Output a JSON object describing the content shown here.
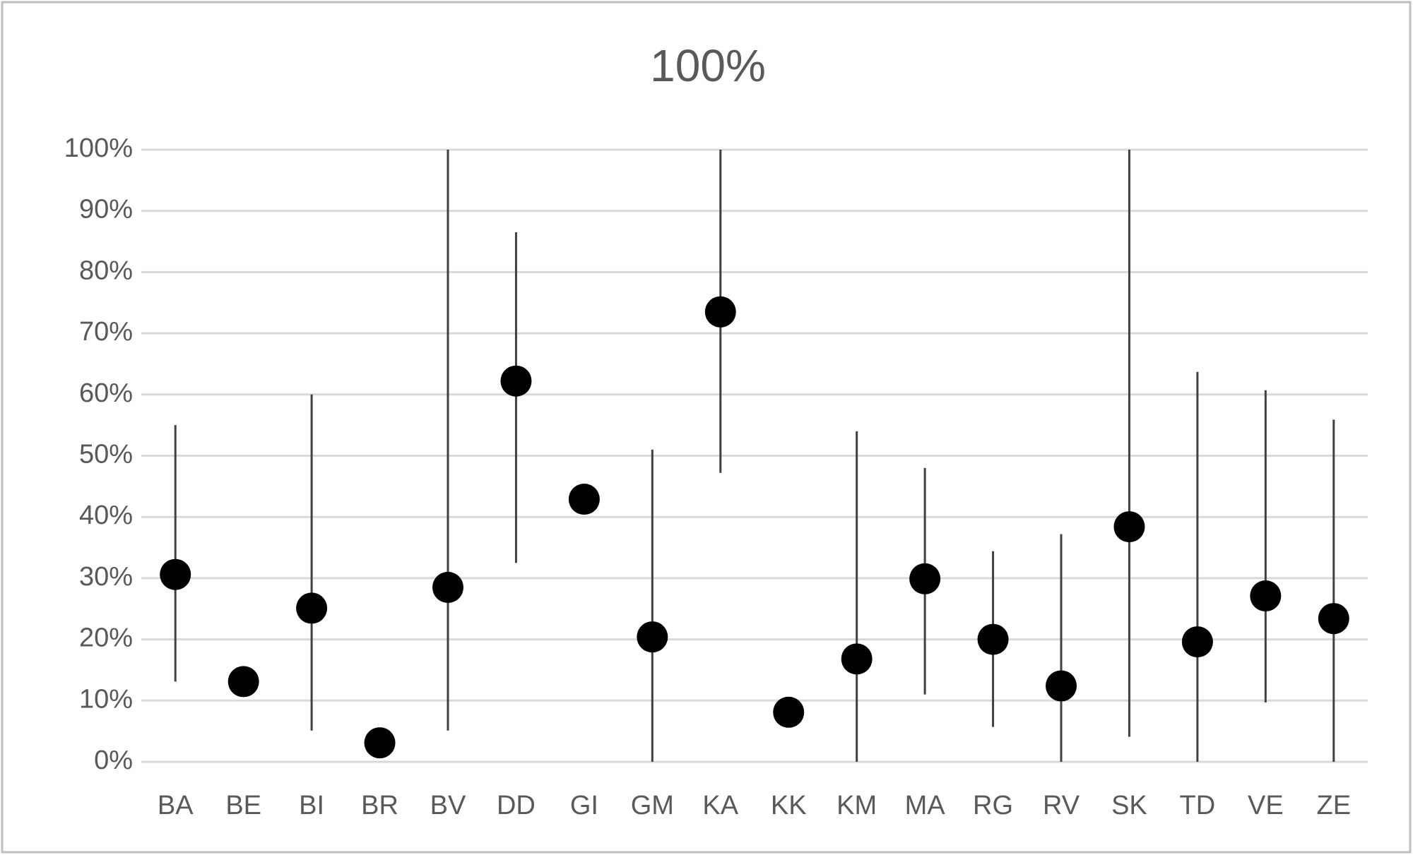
{
  "chart_data": {
    "type": "dot",
    "title": "100%",
    "categories": [
      "BA",
      "BE",
      "BI",
      "BR",
      "BV",
      "DD",
      "GI",
      "GM",
      "KA",
      "KK",
      "KM",
      "MA",
      "RG",
      "RV",
      "SK",
      "TD",
      "VE",
      "ZE"
    ],
    "series": [
      {
        "color": "#000000",
        "values": [
          30.6,
          13.1,
          25.1,
          3.1,
          28.5,
          62.2,
          42.9,
          20.4,
          73.5,
          8.1,
          16.8,
          29.9,
          20,
          12.4,
          38.4,
          19.6,
          27.1,
          23.4
        ],
        "low": [
          13.1,
          null,
          5.1,
          null,
          5.1,
          32.5,
          null,
          0,
          47.2,
          null,
          0,
          11,
          5.7,
          0,
          4.1,
          0,
          9.7,
          0
        ],
        "high": [
          55,
          null,
          60,
          null,
          100,
          86.5,
          null,
          51,
          100,
          null,
          54,
          48,
          34.4,
          37.2,
          100,
          63.7,
          60.7,
          55.9
        ]
      }
    ],
    "ylim": [
      0,
      100
    ],
    "yticks": [
      {
        "value": 0,
        "label": "0%"
      },
      {
        "value": 10,
        "label": "10%"
      },
      {
        "value": 20,
        "label": "20%"
      },
      {
        "value": 30,
        "label": "30%"
      },
      {
        "value": 40,
        "label": "40%"
      },
      {
        "value": 50,
        "label": "50%"
      },
      {
        "value": 60,
        "label": "60%"
      },
      {
        "value": 70,
        "label": "70%"
      },
      {
        "value": 80,
        "label": "80%"
      },
      {
        "value": 90,
        "label": "90%"
      },
      {
        "value": 100,
        "label": "100%"
      }
    ],
    "grid": true
  }
}
